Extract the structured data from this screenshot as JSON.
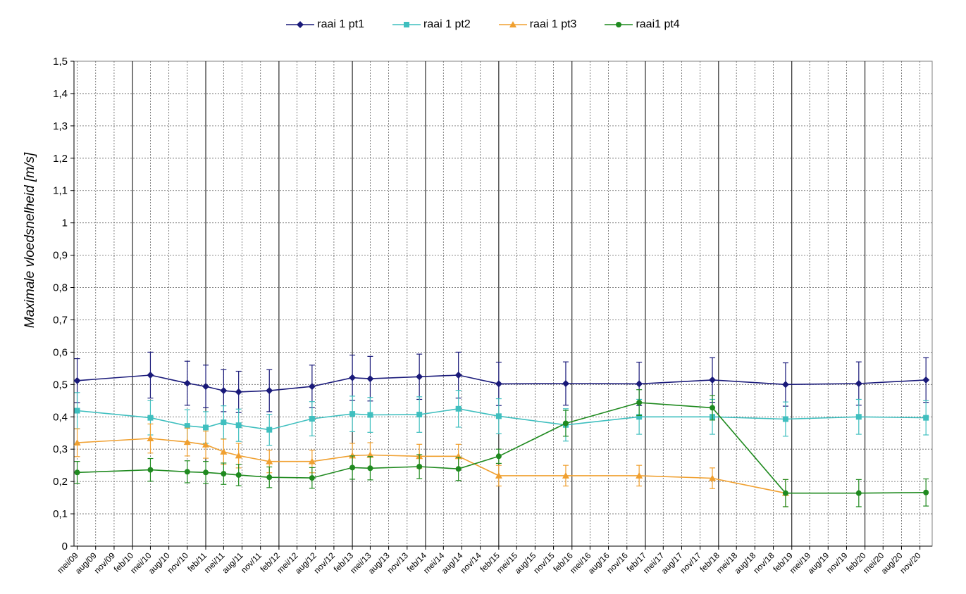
{
  "chart_data": {
    "type": "line",
    "title": "",
    "ylabel": "Maximale vloedsnelheid [m/s]",
    "xlabel": "",
    "ylim": [
      0,
      1.5
    ],
    "y_ticks": [
      "0",
      "0,1",
      "0,2",
      "0,3",
      "0,4",
      "0,5",
      "0,6",
      "0,7",
      "0,8",
      "0,9",
      "1",
      "1,1",
      "1,2",
      "1,3",
      "1,4",
      "1,5"
    ],
    "categories": [
      "mei/09",
      "aug/09",
      "nov/09",
      "feb/10",
      "mei/10",
      "aug/10",
      "nov/10",
      "feb/11",
      "mei/11",
      "aug/11",
      "nov/11",
      "feb/12",
      "mei/12",
      "aug/12",
      "nov/12",
      "feb/13",
      "mei/13",
      "aug/13",
      "nov/13",
      "feb/14",
      "mei/14",
      "aug/14",
      "nov/14",
      "feb/15",
      "mei/15",
      "aug/15",
      "nov/15",
      "feb/16",
      "mei/16",
      "aug/16",
      "nov/16",
      "feb/17",
      "mei/17",
      "aug/17",
      "nov/17",
      "feb/18",
      "mei/18",
      "aug/18",
      "nov/18",
      "feb/19",
      "mei/19",
      "aug/19",
      "nov/19",
      "feb/20",
      "mei/20",
      "aug/20",
      "nov/20"
    ],
    "grid": true,
    "legend_position": "top",
    "series": [
      {
        "name": "raai 1 pt1",
        "color": "#1a1a7a",
        "marker": "diamond",
        "points": [
          {
            "x": "2009-05-01",
            "y": 0.512,
            "err": 0.068
          },
          {
            "x": "2010-05-01",
            "y": 0.529,
            "err": 0.071
          },
          {
            "x": "2010-11-01",
            "y": 0.504,
            "err": 0.068
          },
          {
            "x": "2011-02-01",
            "y": 0.494,
            "err": 0.066
          },
          {
            "x": "2011-05-01",
            "y": 0.481,
            "err": 0.065
          },
          {
            "x": "2011-07-15",
            "y": 0.477,
            "err": 0.064
          },
          {
            "x": "2011-12-15",
            "y": 0.481,
            "err": 0.065
          },
          {
            "x": "2012-07-15",
            "y": 0.494,
            "err": 0.066
          },
          {
            "x": "2013-02-01",
            "y": 0.521,
            "err": 0.07
          },
          {
            "x": "2013-05-01",
            "y": 0.518,
            "err": 0.069
          },
          {
            "x": "2014-01-01",
            "y": 0.524,
            "err": 0.07
          },
          {
            "x": "2014-07-15",
            "y": 0.529,
            "err": 0.071
          },
          {
            "x": "2015-02-01",
            "y": 0.502,
            "err": 0.067
          },
          {
            "x": "2016-01-01",
            "y": 0.503,
            "err": 0.067
          },
          {
            "x": "2017-01-01",
            "y": 0.502,
            "err": 0.067
          },
          {
            "x": "2018-01-01",
            "y": 0.514,
            "err": 0.069
          },
          {
            "x": "2019-01-01",
            "y": 0.5,
            "err": 0.067
          },
          {
            "x": "2020-01-01",
            "y": 0.503,
            "err": 0.067
          },
          {
            "x": "2020-12-01",
            "y": 0.514,
            "err": 0.069
          }
        ]
      },
      {
        "name": "raai 1 pt2",
        "color": "#3fbfbf",
        "marker": "square",
        "points": [
          {
            "x": "2009-05-01",
            "y": 0.419,
            "err": 0.056
          },
          {
            "x": "2010-05-01",
            "y": 0.397,
            "err": 0.053
          },
          {
            "x": "2010-11-01",
            "y": 0.372,
            "err": 0.05
          },
          {
            "x": "2011-02-01",
            "y": 0.367,
            "err": 0.049
          },
          {
            "x": "2011-05-01",
            "y": 0.383,
            "err": 0.051
          },
          {
            "x": "2011-07-15",
            "y": 0.374,
            "err": 0.05
          },
          {
            "x": "2011-12-15",
            "y": 0.36,
            "err": 0.048
          },
          {
            "x": "2012-07-15",
            "y": 0.394,
            "err": 0.053
          },
          {
            "x": "2013-02-01",
            "y": 0.409,
            "err": 0.055
          },
          {
            "x": "2013-05-01",
            "y": 0.406,
            "err": 0.054
          },
          {
            "x": "2014-01-01",
            "y": 0.407,
            "err": 0.055
          },
          {
            "x": "2014-07-15",
            "y": 0.425,
            "err": 0.057
          },
          {
            "x": "2015-02-01",
            "y": 0.402,
            "err": 0.054
          },
          {
            "x": "2016-01-01",
            "y": 0.375,
            "err": 0.05
          },
          {
            "x": "2017-01-01",
            "y": 0.4,
            "err": 0.054
          },
          {
            "x": "2018-01-01",
            "y": 0.4,
            "err": 0.054
          },
          {
            "x": "2019-01-01",
            "y": 0.393,
            "err": 0.053
          },
          {
            "x": "2020-01-01",
            "y": 0.4,
            "err": 0.054
          },
          {
            "x": "2020-12-01",
            "y": 0.397,
            "err": 0.053
          }
        ]
      },
      {
        "name": "raai 1 pt3",
        "color": "#f0a030",
        "marker": "triangle",
        "points": [
          {
            "x": "2009-05-01",
            "y": 0.32,
            "err": 0.043
          },
          {
            "x": "2010-05-01",
            "y": 0.333,
            "err": 0.045
          },
          {
            "x": "2010-11-01",
            "y": 0.322,
            "err": 0.043
          },
          {
            "x": "2011-02-01",
            "y": 0.314,
            "err": 0.042
          },
          {
            "x": "2011-05-01",
            "y": 0.292,
            "err": 0.039
          },
          {
            "x": "2011-07-15",
            "y": 0.28,
            "err": 0.038
          },
          {
            "x": "2011-12-15",
            "y": 0.262,
            "err": 0.035
          },
          {
            "x": "2012-07-15",
            "y": 0.262,
            "err": 0.035
          },
          {
            "x": "2013-02-01",
            "y": 0.28,
            "err": 0.038
          },
          {
            "x": "2013-05-01",
            "y": 0.282,
            "err": 0.038
          },
          {
            "x": "2014-01-01",
            "y": 0.278,
            "err": 0.037
          },
          {
            "x": "2014-07-15",
            "y": 0.278,
            "err": 0.037
          },
          {
            "x": "2015-02-01",
            "y": 0.218,
            "err": 0.032
          },
          {
            "x": "2016-01-01",
            "y": 0.218,
            "err": 0.032
          },
          {
            "x": "2017-01-01",
            "y": 0.218,
            "err": 0.032
          },
          {
            "x": "2018-01-01",
            "y": 0.21,
            "err": 0.032
          },
          {
            "x": "2019-01-01",
            "y": 0.164,
            "err": 0.042
          }
        ]
      },
      {
        "name": "raai1 pt4",
        "color": "#1f8a1f",
        "marker": "circle",
        "points": [
          {
            "x": "2009-05-01",
            "y": 0.228,
            "err": 0.034
          },
          {
            "x": "2010-05-01",
            "y": 0.236,
            "err": 0.035
          },
          {
            "x": "2010-11-01",
            "y": 0.23,
            "err": 0.034
          },
          {
            "x": "2011-02-01",
            "y": 0.228,
            "err": 0.034
          },
          {
            "x": "2011-05-01",
            "y": 0.224,
            "err": 0.033
          },
          {
            "x": "2011-07-15",
            "y": 0.22,
            "err": 0.033
          },
          {
            "x": "2011-12-15",
            "y": 0.213,
            "err": 0.032
          },
          {
            "x": "2012-07-15",
            "y": 0.211,
            "err": 0.032
          },
          {
            "x": "2013-02-01",
            "y": 0.243,
            "err": 0.036
          },
          {
            "x": "2013-05-01",
            "y": 0.241,
            "err": 0.036
          },
          {
            "x": "2014-01-01",
            "y": 0.246,
            "err": 0.037
          },
          {
            "x": "2014-07-15",
            "y": 0.239,
            "err": 0.036
          },
          {
            "x": "2015-02-01",
            "y": 0.278,
            "err": 0.022
          },
          {
            "x": "2016-01-01",
            "y": 0.38,
            "err": 0.04
          },
          {
            "x": "2017-01-01",
            "y": 0.444,
            "err": 0.04
          },
          {
            "x": "2018-01-01",
            "y": 0.428,
            "err": 0.038
          },
          {
            "x": "2019-01-01",
            "y": 0.164,
            "err": 0.042
          },
          {
            "x": "2020-01-01",
            "y": 0.164,
            "err": 0.042
          },
          {
            "x": "2020-12-01",
            "y": 0.166,
            "err": 0.042
          }
        ]
      }
    ]
  }
}
